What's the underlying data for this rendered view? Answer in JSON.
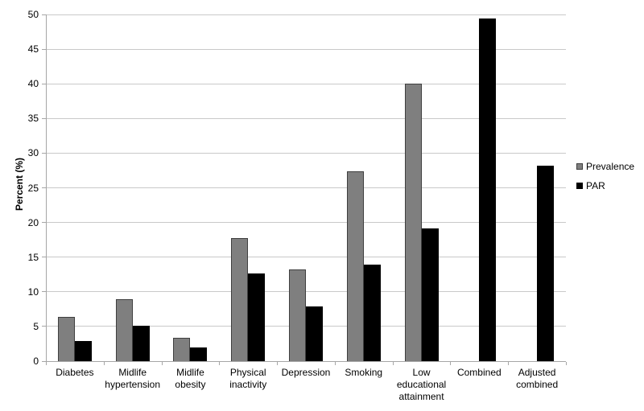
{
  "chart_data": {
    "type": "bar",
    "title": "",
    "xlabel": "",
    "ylabel": "Percent (%)",
    "ylim": [
      0,
      50
    ],
    "yticks": [
      0,
      5,
      10,
      15,
      20,
      25,
      30,
      35,
      40,
      45,
      50
    ],
    "grid": true,
    "legend_position": "right",
    "categories": [
      "Diabetes",
      "Midlife hypertension",
      "Midlife obesity",
      "Physical inactivity",
      "Depression",
      "Smoking",
      "Low educational attainment",
      "Combined",
      "Adjusted combined"
    ],
    "series": [
      {
        "name": "Prevalence",
        "fill_color": "#7f7f7f",
        "border_color": "#3f3f3f",
        "values": [
          6.4,
          8.9,
          3.4,
          17.7,
          13.2,
          27.4,
          40.0,
          null,
          null
        ]
      },
      {
        "name": "PAR",
        "fill_color": "#000000",
        "border_color": "#000000",
        "values": [
          2.9,
          5.1,
          2.0,
          12.7,
          7.9,
          13.9,
          19.1,
          49.4,
          28.2
        ]
      }
    ]
  },
  "colors": {
    "background": "#ffffff",
    "gridline": "#c9c9c9",
    "axis": "#a6a6a6",
    "text": "#000000"
  }
}
